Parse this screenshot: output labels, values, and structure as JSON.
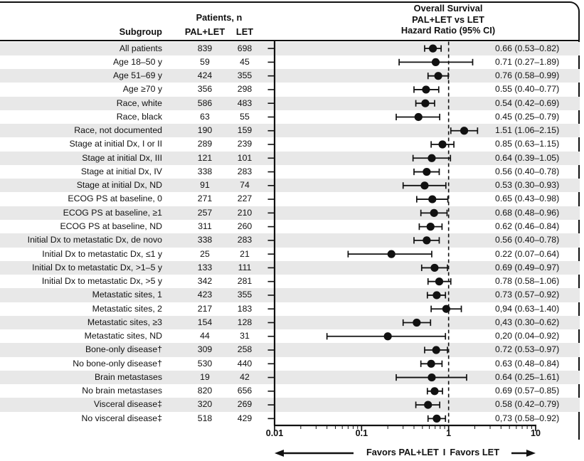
{
  "colors": {
    "ink": "#111111",
    "stripe": "#e8e8e8",
    "background": "#ffffff"
  },
  "header": {
    "patients_n_label": "Patients, n",
    "subgroup_label": "Subgroup",
    "arm1_label": "PAL+LET",
    "arm2_label": "LET",
    "title_lines": [
      "Overall Survival",
      "PAL+LET vs LET",
      "Hazard Ratio (95% CI)"
    ]
  },
  "x_axis": {
    "tick_labels": [
      "0.01",
      "0.1",
      "1",
      "10"
    ],
    "tick_values": [
      0.01,
      0.1,
      1,
      10
    ]
  },
  "favors": {
    "left_label": "Favors PAL+LET",
    "separator": "I",
    "right_label": "Favors LET"
  },
  "chart_data": {
    "type": "forest",
    "x_scale": "log",
    "x_range": [
      0.01,
      10
    ],
    "reference_line": 1,
    "columns": [
      "Subgroup",
      "PAL+LET n",
      "LET n",
      "Hazard Ratio (95% CI)"
    ],
    "rows": [
      {
        "label": "All patients",
        "pal": "839",
        "let": "698",
        "display": "0.66 (0.53–0.82)",
        "est": 0.66,
        "lo": 0.53,
        "hi": 0.82
      },
      {
        "label": "Age 18–50 y",
        "pal": "59",
        "let": "45",
        "display": "0.71 (0.27–1.89)",
        "est": 0.71,
        "lo": 0.27,
        "hi": 1.89
      },
      {
        "label": "Age 51–69 y",
        "pal": "424",
        "let": "355",
        "display": "0.76 (0.58–0.99)",
        "est": 0.76,
        "lo": 0.58,
        "hi": 0.99
      },
      {
        "label": "Age ≥70 y",
        "pal": "356",
        "let": "298",
        "display": "0.55 (0.40–0.77)",
        "est": 0.55,
        "lo": 0.4,
        "hi": 0.77
      },
      {
        "label": "Race, white",
        "pal": "586",
        "let": "483",
        "display": "0.54 (0.42–0.69)",
        "est": 0.54,
        "lo": 0.42,
        "hi": 0.69
      },
      {
        "label": "Race, black",
        "pal": "63",
        "let": "55",
        "display": "0.45 (0.25–0.79)",
        "est": 0.45,
        "lo": 0.25,
        "hi": 0.79
      },
      {
        "label": "Race, not documented",
        "pal": "190",
        "let": "159",
        "display": "1.51 (1.06–2.15)",
        "est": 1.51,
        "lo": 1.06,
        "hi": 2.15
      },
      {
        "label": "Stage at initial Dx, I or II",
        "pal": "289",
        "let": "239",
        "display": "0.85 (0.63–1.15)",
        "est": 0.85,
        "lo": 0.63,
        "hi": 1.15
      },
      {
        "label": "Stage at initial Dx, III",
        "pal": "121",
        "let": "101",
        "display": "0.64 (0.39–1.05)",
        "est": 0.64,
        "lo": 0.39,
        "hi": 1.05
      },
      {
        "label": "Stage at initial Dx, IV",
        "pal": "338",
        "let": "283",
        "display": "0.56 (0.40–0.78)",
        "est": 0.56,
        "lo": 0.4,
        "hi": 0.78
      },
      {
        "label": "Stage at initial Dx, ND",
        "pal": "91",
        "let": "74",
        "display": "0.53 (0.30–0.93)",
        "est": 0.53,
        "lo": 0.3,
        "hi": 0.93
      },
      {
        "label": "ECOG PS at baseline, 0",
        "pal": "271",
        "let": "227",
        "display": "0.65 (0.43–0.98)",
        "est": 0.65,
        "lo": 0.43,
        "hi": 0.98
      },
      {
        "label": "ECOG PS at baseline, ≥1",
        "pal": "257",
        "let": "210",
        "display": "0.68 (0.48–0.96)",
        "est": 0.68,
        "lo": 0.48,
        "hi": 0.96
      },
      {
        "label": "ECOG PS at baseline, ND",
        "pal": "311",
        "let": "260",
        "display": "0.62 (0.46–0.84)",
        "est": 0.62,
        "lo": 0.46,
        "hi": 0.84
      },
      {
        "label": "Initial Dx to metastatic Dx, de novo",
        "pal": "338",
        "let": "283",
        "display": "0.56 (0.40–0.78)",
        "est": 0.56,
        "lo": 0.4,
        "hi": 0.78
      },
      {
        "label": "Initial Dx to metastatic Dx, ≤1 y",
        "pal": "25",
        "let": "21",
        "display": "0.22 (0.07–0.64)",
        "est": 0.22,
        "lo": 0.07,
        "hi": 0.64
      },
      {
        "label": "Initial Dx to metastatic Dx, >1–5 y",
        "pal": "133",
        "let": "111",
        "display": "0.69 (0.49–0.97)",
        "est": 0.69,
        "lo": 0.49,
        "hi": 0.97
      },
      {
        "label": "Initial Dx to metastatic Dx, >5 y",
        "pal": "342",
        "let": "281",
        "display": "0.78 (0.58–1.06)",
        "est": 0.78,
        "lo": 0.58,
        "hi": 1.06
      },
      {
        "label": "Metastatic sites, 1",
        "pal": "423",
        "let": "355",
        "display": "0.73 (0.57–0.92)",
        "est": 0.73,
        "lo": 0.57,
        "hi": 0.92
      },
      {
        "label": "Metastatic sites, 2",
        "pal": "217",
        "let": "183",
        "display": "0,94 (0.63–1.40)",
        "est": 0.94,
        "lo": 0.63,
        "hi": 1.4
      },
      {
        "label": "Metastatic sites, ≥3",
        "pal": "154",
        "let": "128",
        "display": "0,43 (0.30–0.62)",
        "est": 0.43,
        "lo": 0.3,
        "hi": 0.62
      },
      {
        "label": "Metastatic sites, ND",
        "pal": "44",
        "let": "31",
        "display": "0,20 (0.04–0.92)",
        "est": 0.2,
        "lo": 0.04,
        "hi": 0.92
      },
      {
        "label": "Bone-only disease†",
        "pal": "309",
        "let": "258",
        "display": "0.72 (0.53–0.97)",
        "est": 0.72,
        "lo": 0.53,
        "hi": 0.97
      },
      {
        "label": "No bone-only disease†",
        "pal": "530",
        "let": "440",
        "display": "0.63 (0.48–0.84)",
        "est": 0.63,
        "lo": 0.48,
        "hi": 0.84
      },
      {
        "label": "Brain metastases",
        "pal": "19",
        "let": "42",
        "display": "0.64 (0.25–1.61)",
        "est": 0.64,
        "lo": 0.25,
        "hi": 1.61
      },
      {
        "label": "No brain metastases",
        "pal": "820",
        "let": "656",
        "display": "0.69 (0.57–0.85)",
        "est": 0.69,
        "lo": 0.57,
        "hi": 0.85
      },
      {
        "label": "Visceral disease‡",
        "pal": "320",
        "let": "269",
        "display": "0.58 (0.42–0.79)",
        "est": 0.58,
        "lo": 0.42,
        "hi": 0.79
      },
      {
        "label": "No visceral disease‡",
        "pal": "518",
        "let": "429",
        "display": "0,73 (0.58–0.92)",
        "est": 0.73,
        "lo": 0.58,
        "hi": 0.92
      }
    ]
  }
}
